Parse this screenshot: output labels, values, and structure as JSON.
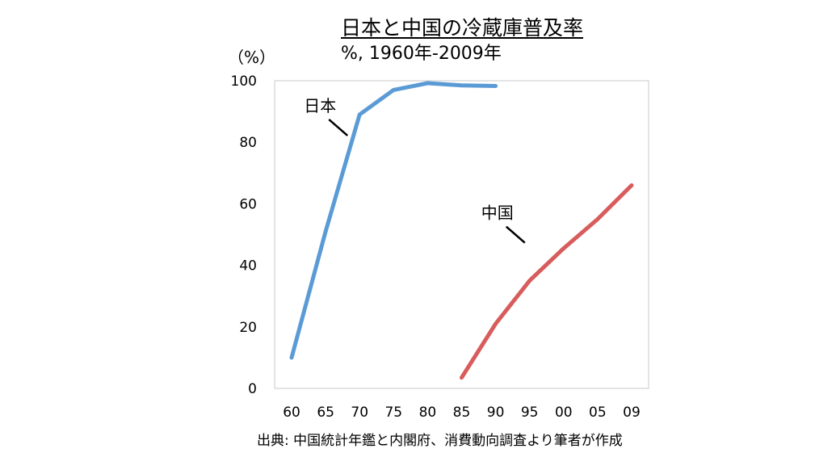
{
  "chart_data": {
    "type": "line",
    "title": "日本と中国の冷蔵庫普及率",
    "subtitle": "%, 1960年-2009年",
    "ylabel": "（%）",
    "source": "出典: 中国統計年鑑と内閣府、消費動向調査より筆者が作成",
    "ylim": [
      0,
      100
    ],
    "yticks": [
      0,
      20,
      40,
      60,
      80,
      100
    ],
    "categories": [
      "60",
      "65",
      "70",
      "75",
      "80",
      "85",
      "90",
      "95",
      "00",
      "05",
      "09"
    ],
    "grid": false,
    "series": [
      {
        "name": "日本",
        "color": "#5b9bd5",
        "points": [
          {
            "x": 0,
            "y": 10
          },
          {
            "x": 1,
            "y": 51
          },
          {
            "x": 2,
            "y": 89
          },
          {
            "x": 3,
            "y": 97
          },
          {
            "x": 4,
            "y": 99.2
          },
          {
            "x": 5,
            "y": 98.5
          },
          {
            "x": 6,
            "y": 98.3
          }
        ]
      },
      {
        "name": "中国",
        "color": "#d85c5c",
        "points": [
          {
            "x": 5,
            "y": 3.5
          },
          {
            "x": 6,
            "y": 21
          },
          {
            "x": 7,
            "y": 35
          },
          {
            "x": 8,
            "y": 45.5
          },
          {
            "x": 9,
            "y": 55
          },
          {
            "x": 10,
            "y": 66
          }
        ]
      }
    ]
  }
}
